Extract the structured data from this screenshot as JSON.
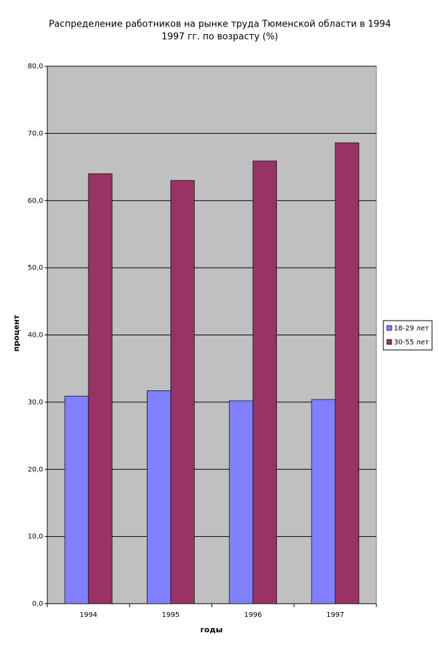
{
  "chart_data": {
    "type": "bar",
    "title": [
      "Распределение работников на рынке труда Тюменской области в 1994",
      "1997 гг. по возрасту (%)"
    ],
    "x_label": "годы",
    "y_label": "процент",
    "categories": [
      "1994",
      "1995",
      "1996",
      "1997"
    ],
    "series": [
      {
        "name": "18-29 лет",
        "color": "#8080ff",
        "values": [
          30.9,
          31.7,
          30.2,
          30.4
        ]
      },
      {
        "name": "30-55 лет",
        "color": "#993366",
        "values": [
          64.0,
          63.0,
          65.9,
          68.6
        ]
      }
    ],
    "ylim": [
      0,
      80
    ],
    "yticks": [
      {
        "value": 0,
        "label": "0,0"
      },
      {
        "value": 10,
        "label": "10,0"
      },
      {
        "value": 20,
        "label": "20,0"
      },
      {
        "value": 30,
        "label": "30,0"
      },
      {
        "value": 40,
        "label": "40,0"
      },
      {
        "value": 50,
        "label": "50,0"
      },
      {
        "value": 60,
        "label": "60,0"
      },
      {
        "value": 70,
        "label": "70,0"
      },
      {
        "value": 80,
        "label": "80,0"
      }
    ],
    "grid": true,
    "plot_background": "#c0c0c0",
    "legend": "right"
  }
}
